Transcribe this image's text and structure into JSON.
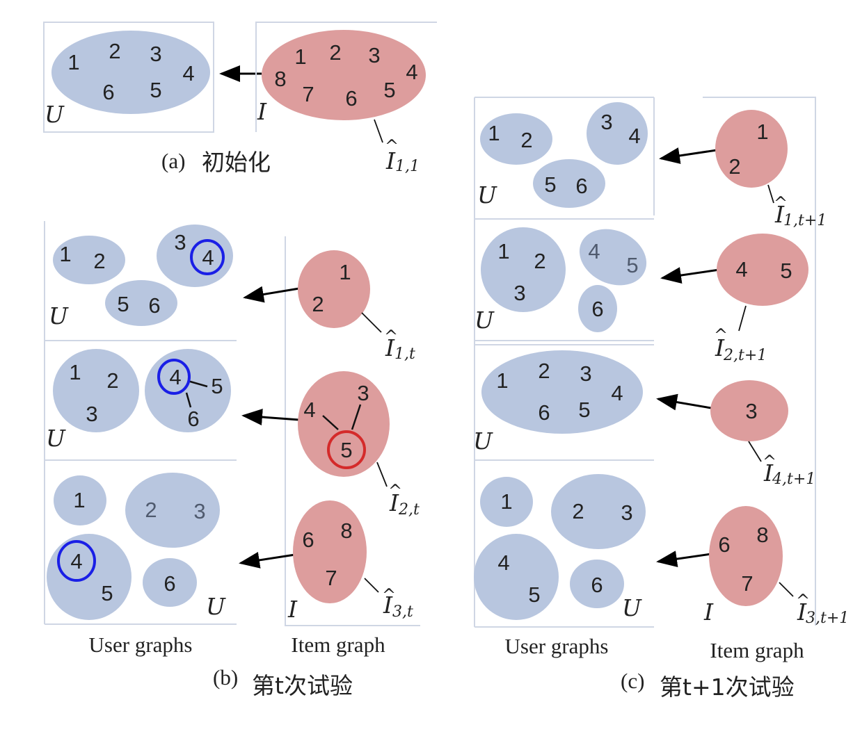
{
  "colors": {
    "user_cluster": "#b8c6df",
    "item_cluster": "#dd9d9d",
    "user_highlight": "#1a1fe6",
    "item_highlight": "#d42a2a"
  },
  "set_labels": {
    "users": "U",
    "items": "I"
  },
  "captions": {
    "a": {
      "tag": "(a)",
      "text": "初始化"
    },
    "b": {
      "tag": "(b)",
      "text": "第t次试验"
    },
    "c": {
      "tag": "(c)",
      "text": "第t+1次试验"
    }
  },
  "column_headers": {
    "user": "User graphs",
    "item": "Item graph"
  },
  "panel_a": {
    "user_nodes": [
      "1",
      "2",
      "3",
      "4",
      "5",
      "6"
    ],
    "item_nodes": [
      "1",
      "2",
      "3",
      "4",
      "5",
      "6",
      "7",
      "8"
    ],
    "item_label": {
      "base": "I",
      "sub": "1,1"
    }
  },
  "panel_b": {
    "rows": [
      {
        "user_clusters": [
          [
            "1",
            "2"
          ],
          [
            "3",
            "4"
          ],
          [
            "5",
            "6"
          ]
        ],
        "highlight_user": "4",
        "item_cluster": [
          "1",
          "2"
        ],
        "item_label": {
          "base": "I",
          "sub": "1,t"
        }
      },
      {
        "user_clusters": [
          [
            "1",
            "2",
            "3"
          ],
          [
            "4",
            "5",
            "6"
          ]
        ],
        "highlight_user": "4",
        "item_cluster": [
          "3",
          "4",
          "5"
        ],
        "highlight_item": "5",
        "item_label": {
          "base": "I",
          "sub": "2,t"
        }
      },
      {
        "user_clusters": [
          [
            "1"
          ],
          [
            "2",
            "3"
          ],
          [
            "4",
            "5"
          ],
          [
            "6"
          ]
        ],
        "highlight_user": "4",
        "item_cluster": [
          "6",
          "7",
          "8"
        ],
        "item_label": {
          "base": "I",
          "sub": "3,t"
        }
      }
    ]
  },
  "panel_c": {
    "rows": [
      {
        "user_clusters": [
          [
            "1",
            "2"
          ],
          [
            "3",
            "4"
          ],
          [
            "5",
            "6"
          ]
        ],
        "item_cluster": [
          "1",
          "2"
        ],
        "item_label": {
          "base": "I",
          "sub": "1,t+1"
        }
      },
      {
        "user_clusters": [
          [
            "1",
            "2",
            "3"
          ],
          [
            "4",
            "5"
          ],
          [
            "6"
          ]
        ],
        "item_cluster": [
          "4",
          "5"
        ],
        "item_label": {
          "base": "I",
          "sub": "2,t+1"
        }
      },
      {
        "user_clusters": [
          [
            "1",
            "2",
            "3",
            "4",
            "5",
            "6"
          ]
        ],
        "item_cluster": [
          "3"
        ],
        "item_label": {
          "base": "I",
          "sub": "4,t+1"
        }
      },
      {
        "user_clusters": [
          [
            "1"
          ],
          [
            "2",
            "3"
          ],
          [
            "4",
            "5"
          ],
          [
            "6"
          ]
        ],
        "item_cluster": [
          "6",
          "7",
          "8"
        ],
        "item_label": {
          "base": "I",
          "sub": "3,t+1"
        }
      }
    ]
  }
}
